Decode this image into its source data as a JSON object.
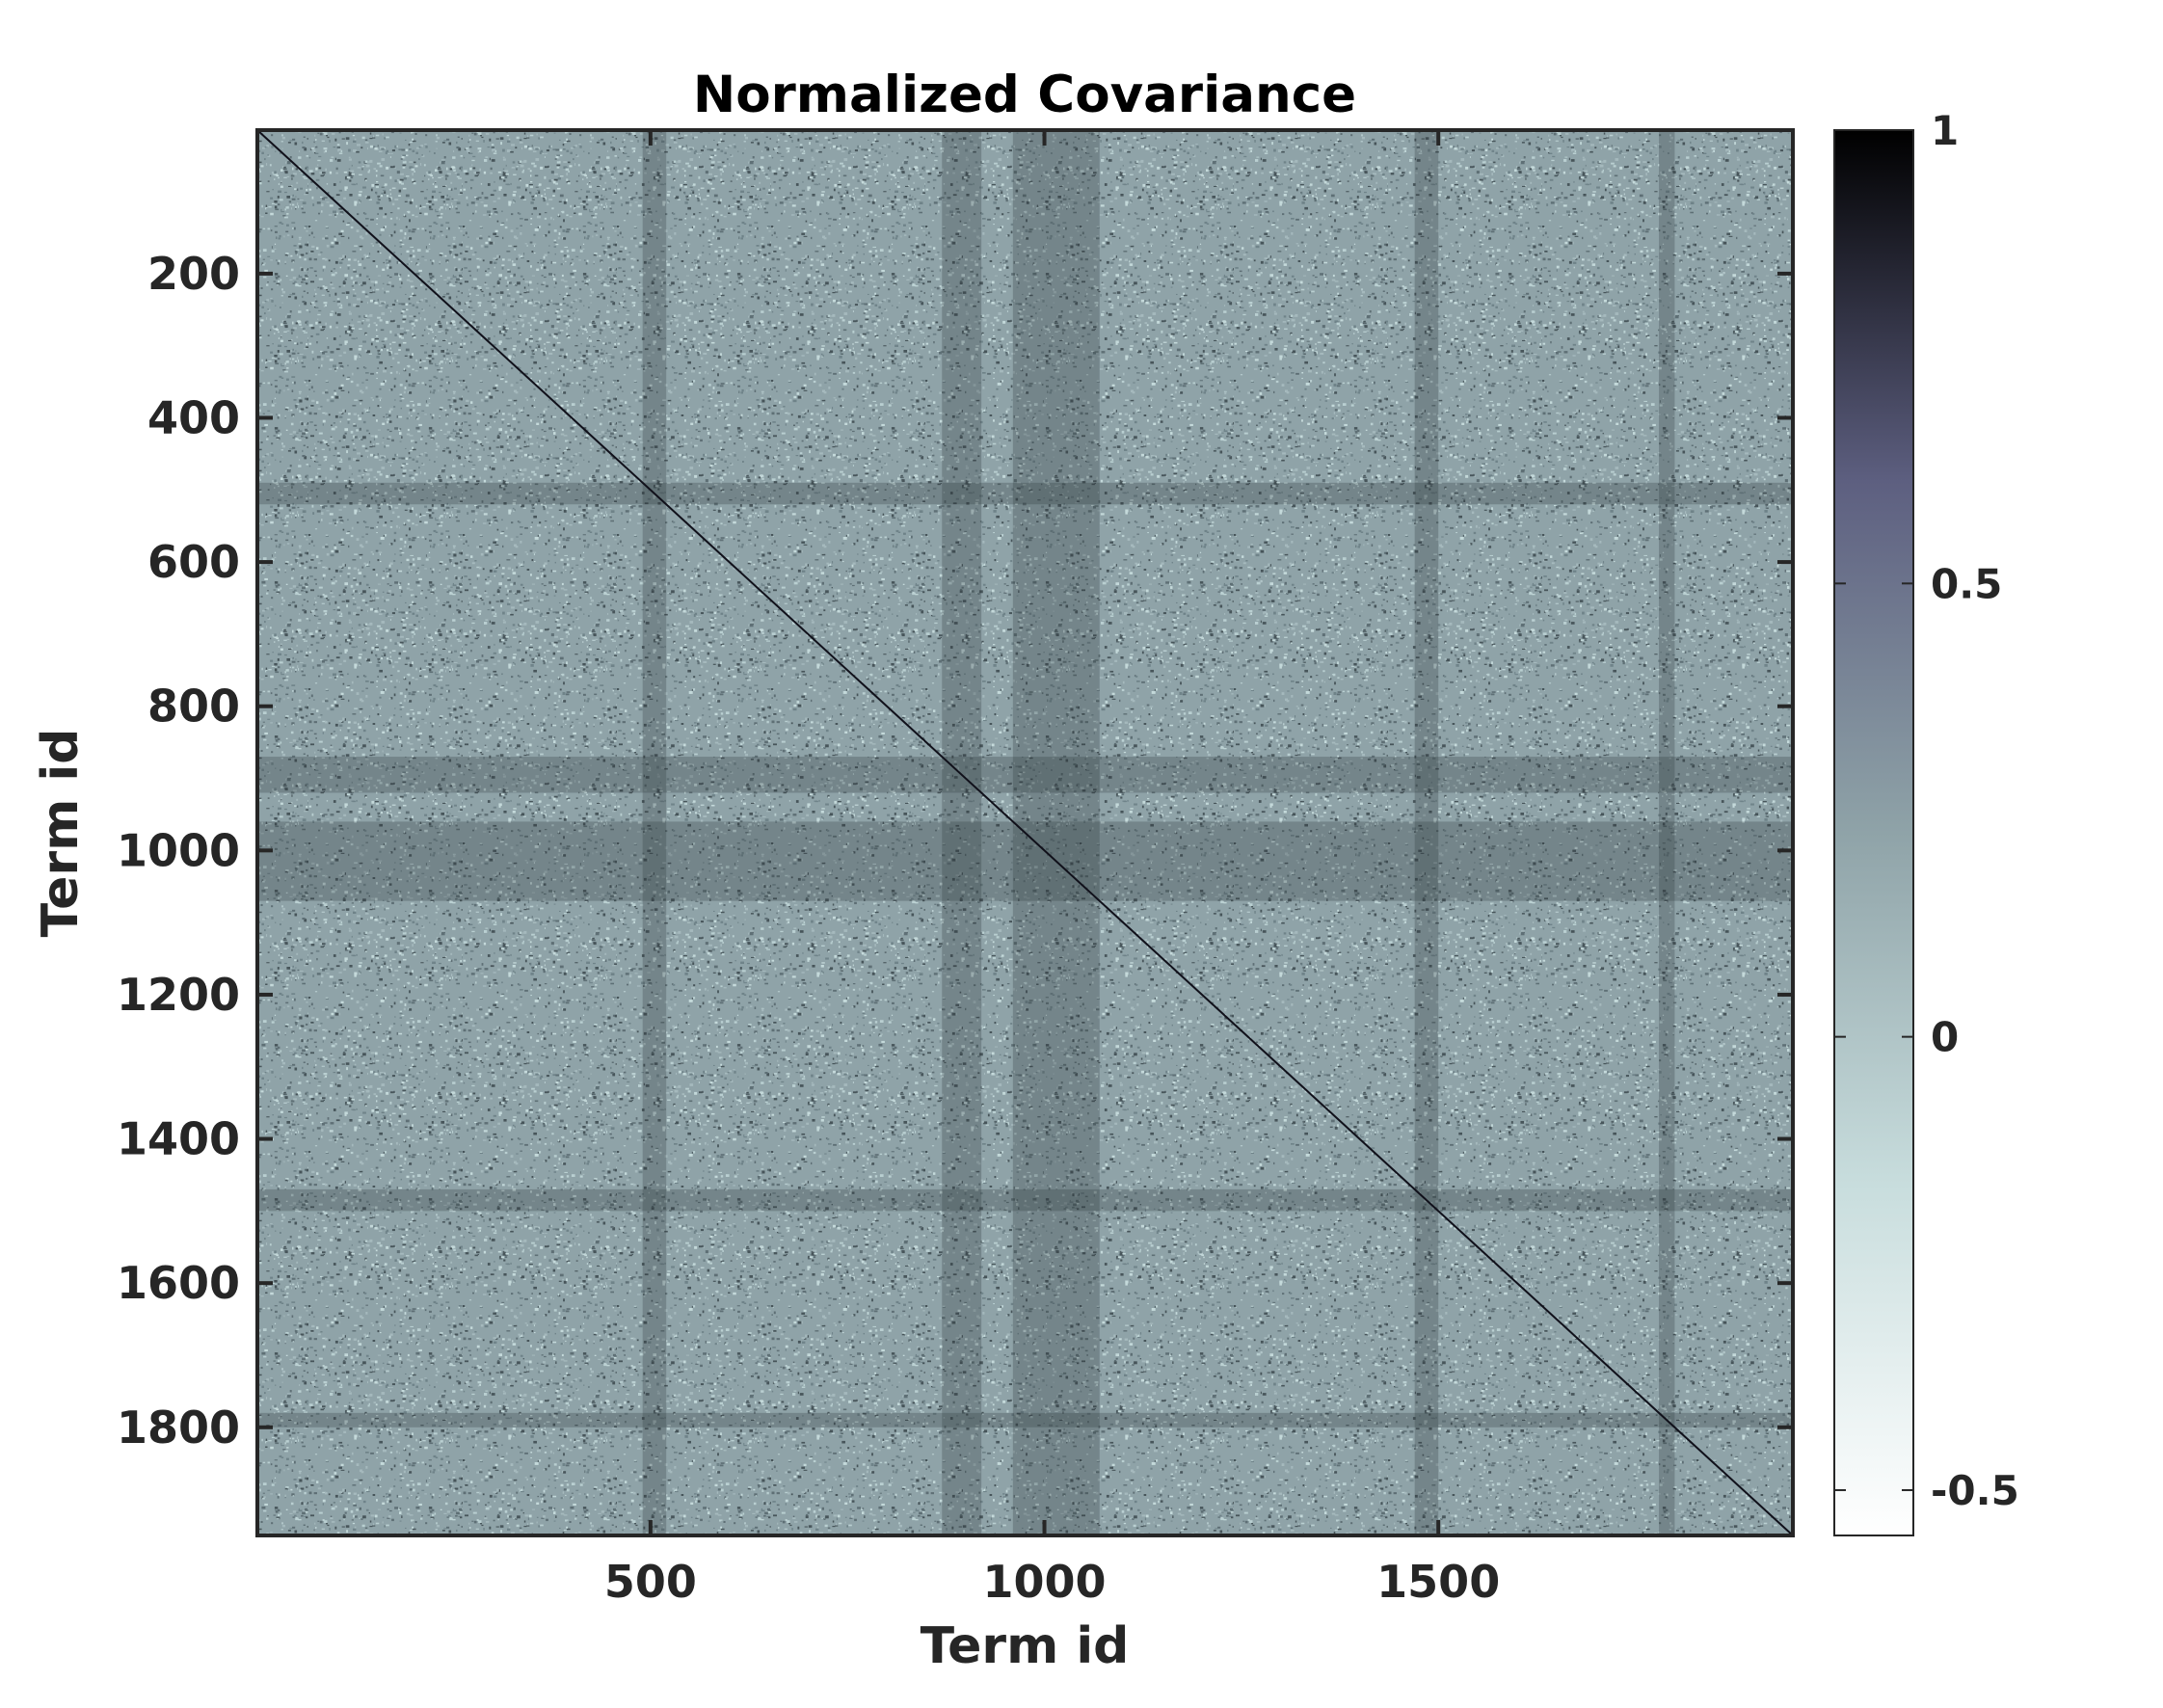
{
  "chart_data": {
    "type": "heatmap",
    "title": "Normalized Covariance",
    "xlabel": "Term id",
    "ylabel": "Term id",
    "matrix_size": 1950,
    "xlim": [
      1,
      1950
    ],
    "ylim": [
      1,
      1950
    ],
    "y_reversed": true,
    "xticks": [
      500,
      1000,
      1500
    ],
    "xtick_labels": [
      "500",
      "1000",
      "1500"
    ],
    "yticks": [
      200,
      400,
      600,
      800,
      1000,
      1200,
      1400,
      1600,
      1800
    ],
    "ytick_labels": [
      "200",
      "400",
      "600",
      "800",
      "1000",
      "1200",
      "1400",
      "1600",
      "1800"
    ],
    "diagonal_value": 1,
    "typical_offdiagonal_value": -0.05,
    "high_variance_bands": [
      {
        "from": 490,
        "to": 520
      },
      {
        "from": 870,
        "to": 920
      },
      {
        "from": 960,
        "to": 1070
      },
      {
        "from": 1470,
        "to": 1500
      },
      {
        "from": 1780,
        "to": 1800
      }
    ],
    "colorbar": {
      "range": [
        -0.55,
        1
      ],
      "ticks": [
        -0.5,
        0,
        0.5,
        1
      ],
      "tick_labels": [
        "-0.5",
        "0",
        "0.5",
        "1"
      ],
      "colormap": "bone-reversed",
      "colors": [
        "#ffffff",
        "#c8dddd",
        "#8fa3a8",
        "#5d5f80",
        "#000000"
      ]
    },
    "grid": false
  }
}
